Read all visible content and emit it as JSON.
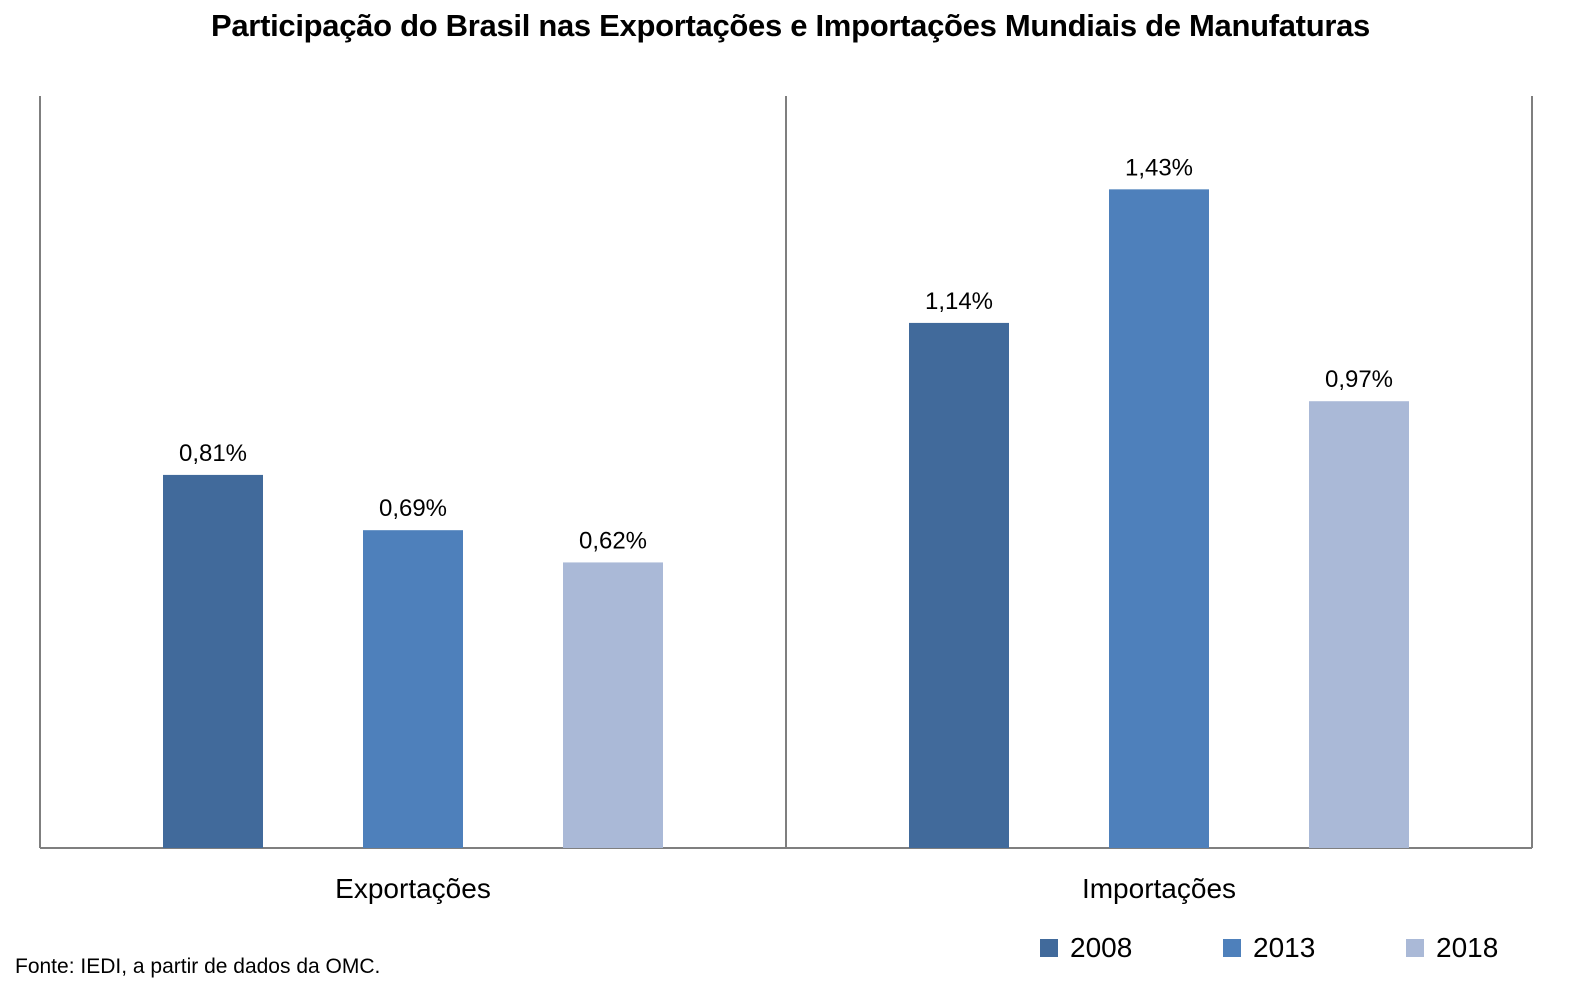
{
  "chart_data": {
    "type": "bar",
    "title": "Participação do Brasil nas Exportações e Importações Mundiais de Manufaturas",
    "categories": [
      "Exportações",
      "Importações"
    ],
    "series": [
      {
        "name": "2008",
        "color": "#416a9b",
        "values": [
          0.81,
          1.14
        ],
        "labels": [
          "0,81%",
          "1,14%"
        ]
      },
      {
        "name": "2013",
        "color": "#4e80bb",
        "values": [
          0.69,
          1.43
        ],
        "labels": [
          "0,69%",
          "1,43%"
        ]
      },
      {
        "name": "2018",
        "color": "#aab9d7",
        "values": [
          0.62,
          0.97
        ],
        "labels": [
          "0,62%",
          "0,97%"
        ]
      }
    ],
    "ylim": [
      0,
      1.6
    ],
    "xlabel": "",
    "ylabel": "",
    "grid": false,
    "legend": "bottom-right",
    "source": "Fonte: IEDI, a partir de dados da OMC."
  }
}
